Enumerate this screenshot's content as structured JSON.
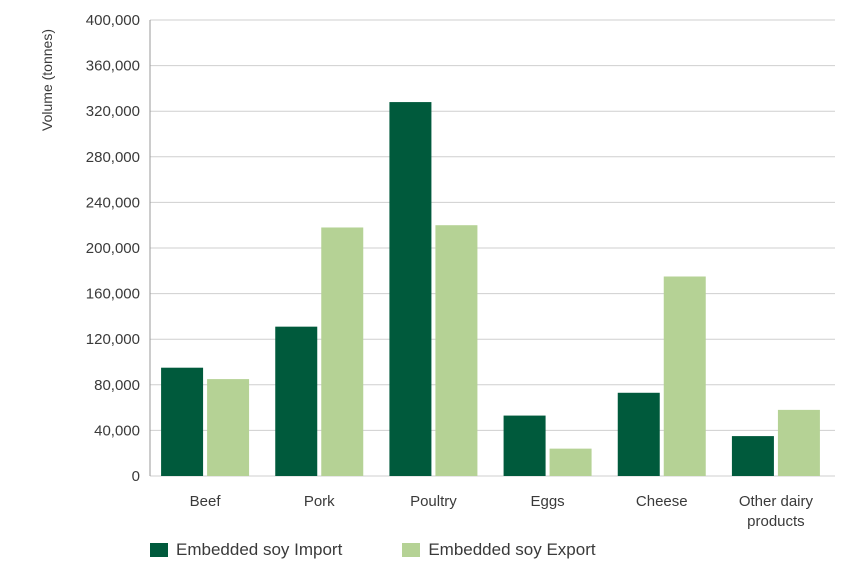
{
  "chart_data": {
    "type": "bar",
    "ylabel": "Volume (tonnes)",
    "ylim": [
      0,
      400000
    ],
    "yticks": [
      {
        "value": 0,
        "label": "0"
      },
      {
        "value": 40000,
        "label": "40,000"
      },
      {
        "value": 80000,
        "label": "80,000"
      },
      {
        "value": 120000,
        "label": "120,000"
      },
      {
        "value": 160000,
        "label": "160,000"
      },
      {
        "value": 200000,
        "label": "200,000"
      },
      {
        "value": 240000,
        "label": "240,000"
      },
      {
        "value": 280000,
        "label": "280,000"
      },
      {
        "value": 320000,
        "label": "320,000"
      },
      {
        "value": 360000,
        "label": "360,000"
      },
      {
        "value": 400000,
        "label": "400,000"
      }
    ],
    "categories": [
      "Beef",
      "Pork",
      "Poultry",
      "Eggs",
      "Cheese",
      "Other dairy products"
    ],
    "series": [
      {
        "name": "Embedded soy Import",
        "color": "#005a3c",
        "values": [
          95000,
          131000,
          328000,
          53000,
          73000,
          35000
        ]
      },
      {
        "name": "Embedded soy Export",
        "color": "#b5d295",
        "values": [
          85000,
          218000,
          220000,
          24000,
          175000,
          58000
        ]
      }
    ],
    "grid": true,
    "legend_position": "bottom"
  }
}
